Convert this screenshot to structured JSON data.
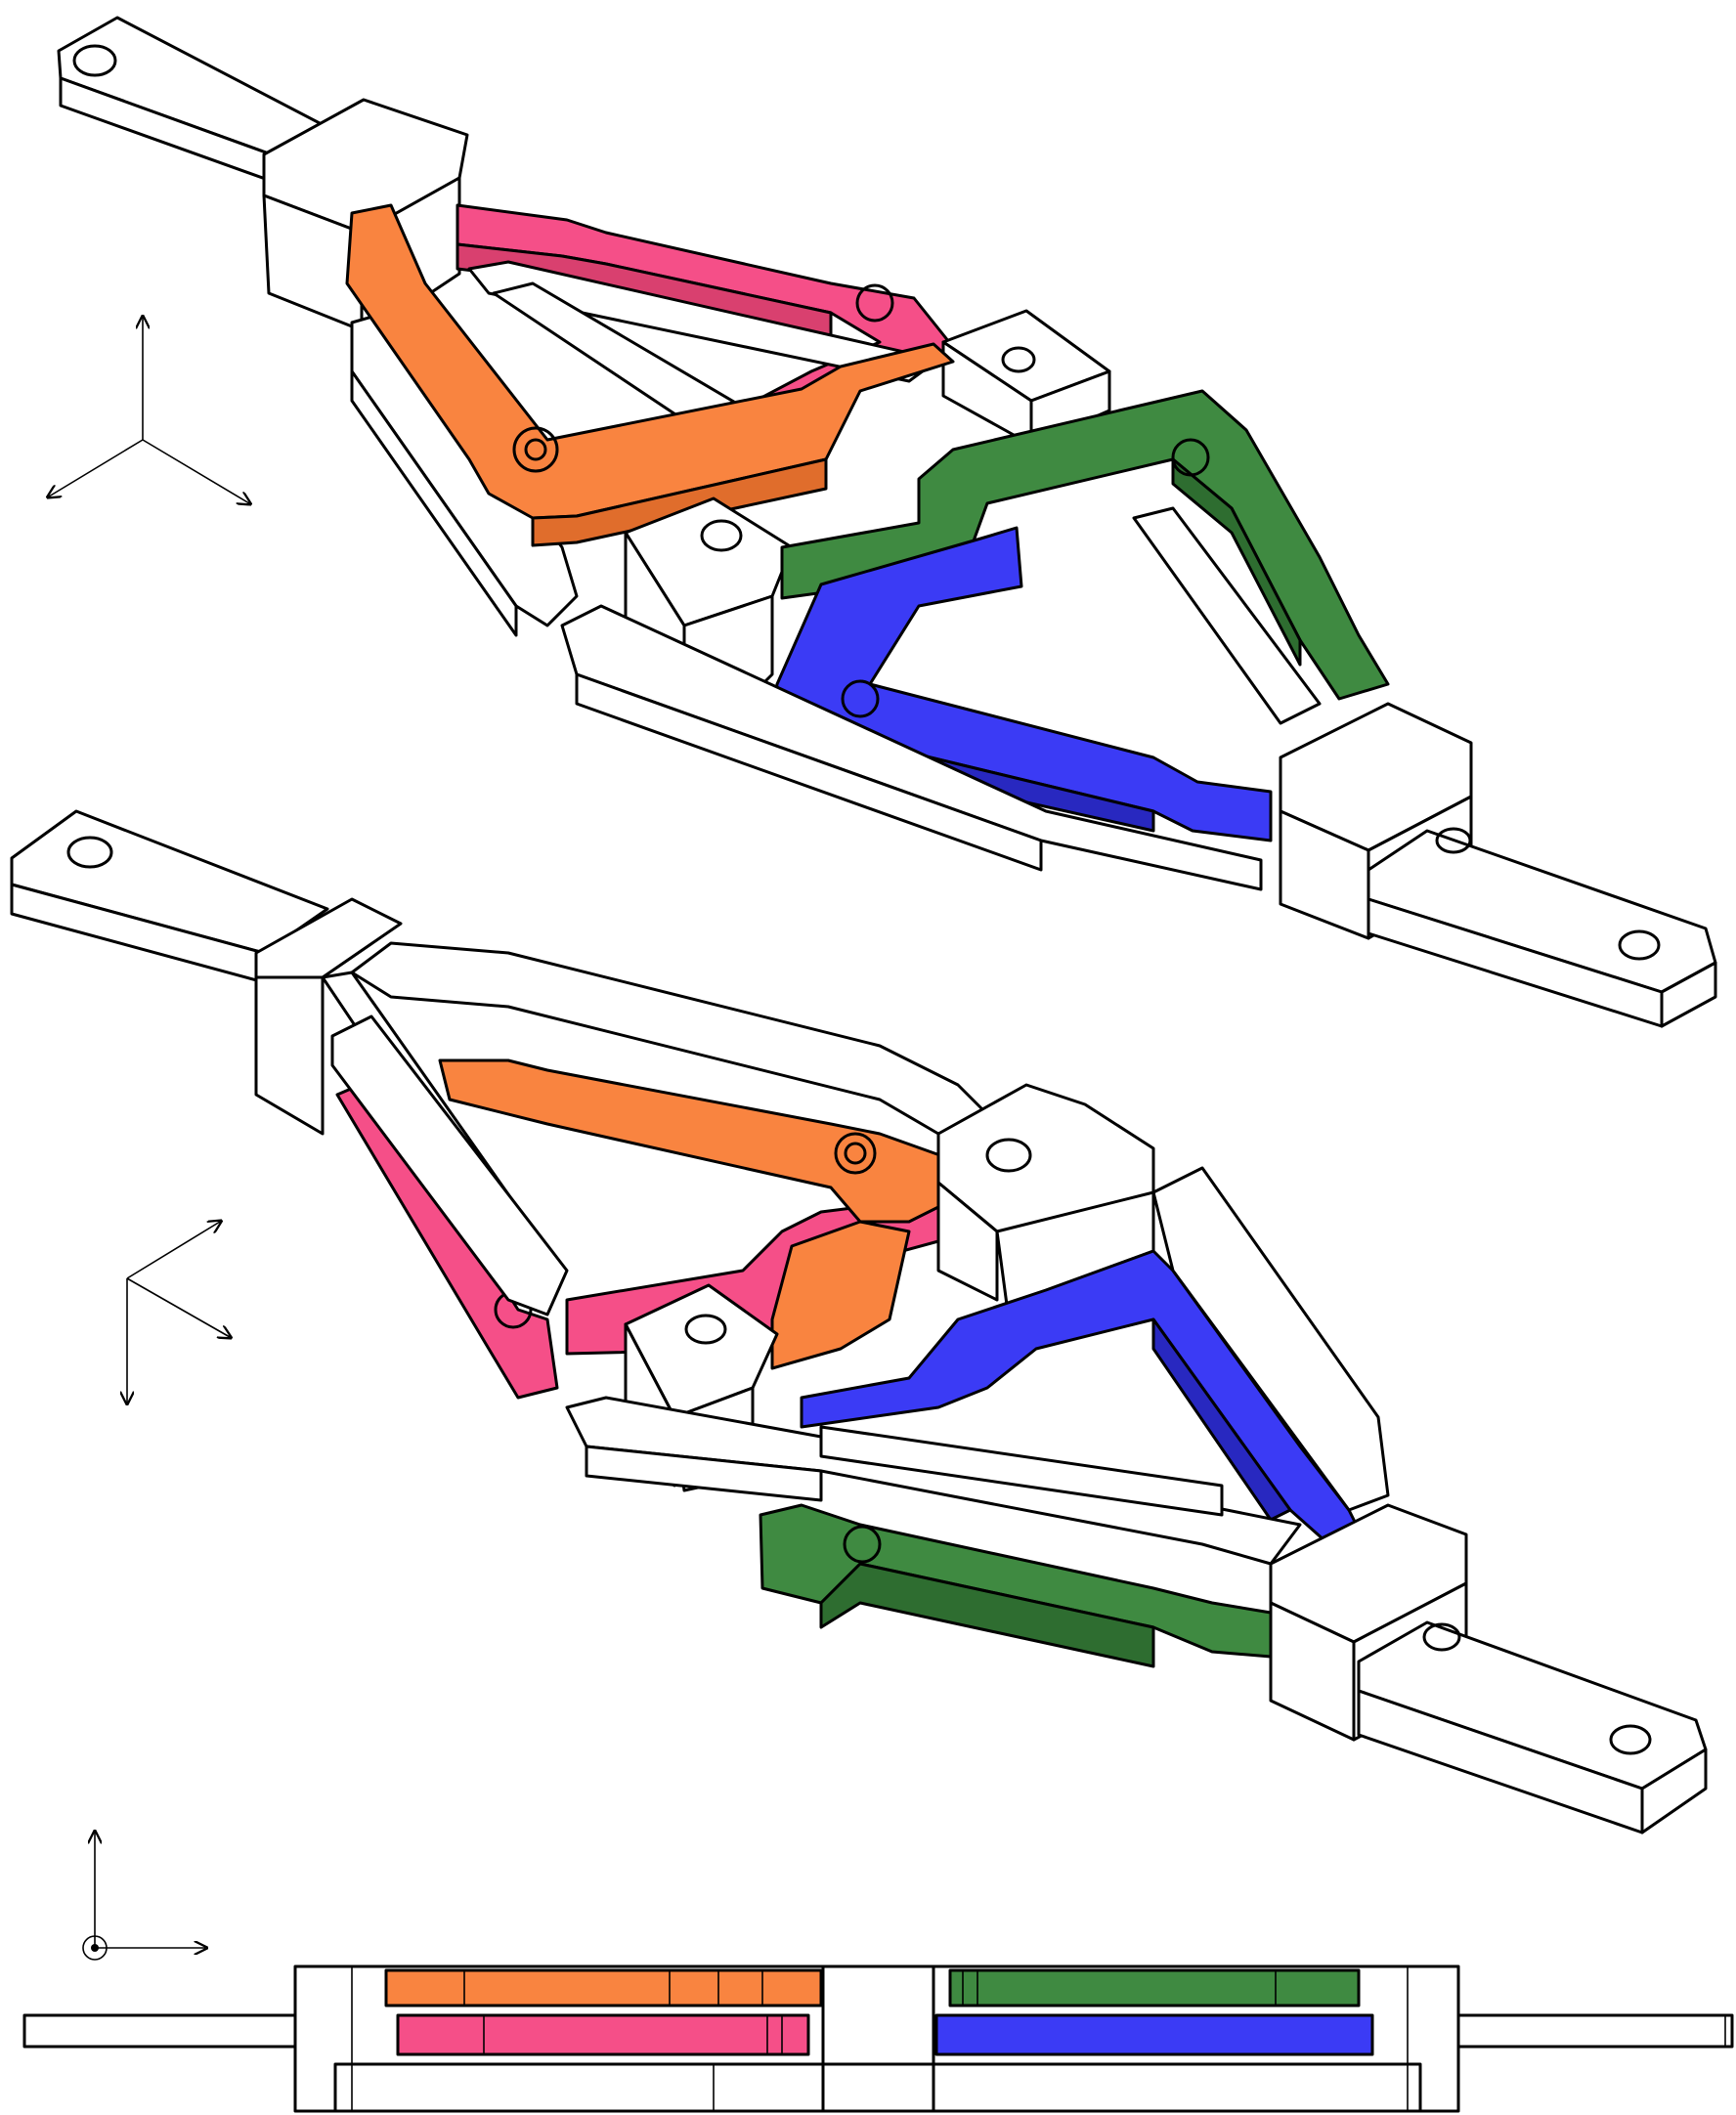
{
  "figure": {
    "views": [
      {
        "name": "isometric-view-top",
        "axes": "triad-up-left-right"
      },
      {
        "name": "isometric-view-bottom",
        "axes": "triad-right-right-down"
      },
      {
        "name": "side-view",
        "axes": "planar-up-right-out-of-plane"
      }
    ],
    "link_colors": {
      "orange": "#f98440",
      "pink": "#f54f88",
      "green": "#3f8a41",
      "blue": "#3b3bf5",
      "frame": "#ffffff",
      "outline": "#000000"
    },
    "icons": [
      "axis-arrow-icon",
      "out-of-plane-dot-icon",
      "mounting-hole-icon"
    ]
  }
}
